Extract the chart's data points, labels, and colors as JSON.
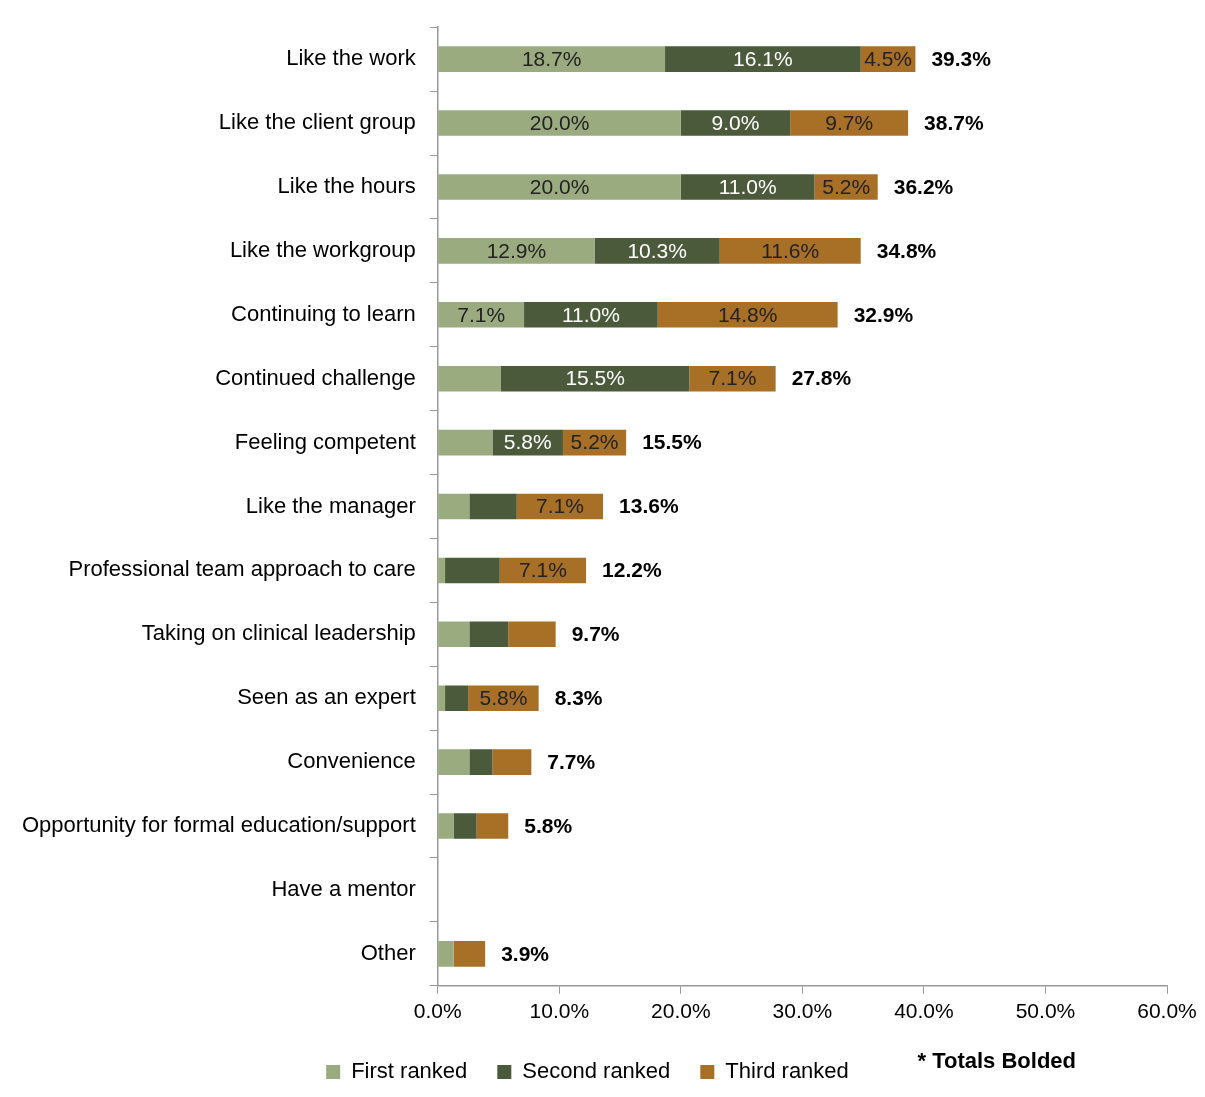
{
  "chart_data": {
    "type": "bar",
    "orientation": "horizontal",
    "stacked": true,
    "categories": [
      "Like the work",
      "Like the client group",
      "Like the hours",
      "Like the workgroup",
      "Continuing to learn",
      "Continued challenge",
      "Feeling competent",
      "Like the manager",
      "Professional team approach to care",
      "Taking on clinical leadership",
      "Seen as an expert",
      "Convenience",
      "Opportunity for formal education/support",
      "Have a mentor",
      "Other"
    ],
    "series": [
      {
        "name": "First ranked",
        "color": "#9aab7f",
        "values": [
          18.7,
          20.0,
          20.0,
          12.9,
          7.1,
          5.2,
          4.5,
          2.6,
          0.6,
          2.6,
          0.6,
          2.6,
          1.3,
          0,
          1.3
        ],
        "value_labels": [
          "18.7%",
          "20.0%",
          "20.0%",
          "12.9%",
          "7.1%",
          null,
          null,
          null,
          null,
          null,
          null,
          null,
          null,
          null,
          null
        ]
      },
      {
        "name": "Second ranked",
        "color": "#4b5a3a",
        "values": [
          16.1,
          9.0,
          11.0,
          10.3,
          11.0,
          15.5,
          5.8,
          3.9,
          4.5,
          3.2,
          1.9,
          1.9,
          1.9,
          0,
          0
        ],
        "value_labels": [
          "16.1%",
          "9.0%",
          "11.0%",
          "10.3%",
          "11.0%",
          "15.5%",
          "5.8%",
          null,
          null,
          null,
          null,
          null,
          null,
          null,
          null
        ]
      },
      {
        "name": "Third ranked",
        "color": "#a86f27",
        "values": [
          4.5,
          9.7,
          5.2,
          11.6,
          14.8,
          7.1,
          5.2,
          7.1,
          7.1,
          3.9,
          5.8,
          3.2,
          2.6,
          0,
          2.6
        ],
        "value_labels": [
          "4.5%",
          "9.7%",
          "5.2%",
          "11.6%",
          "14.8%",
          "7.1%",
          "5.2%",
          "7.1%",
          "7.1%",
          null,
          "5.8%",
          null,
          null,
          null,
          null
        ]
      }
    ],
    "totals": [
      "39.3%",
      "38.7%",
      "36.2%",
      "34.8%",
      "32.9%",
      "27.8%",
      "15.5%",
      "13.6%",
      "12.2%",
      "9.7%",
      "8.3%",
      "7.7%",
      "5.8%",
      null,
      "3.9%"
    ],
    "xlim": [
      0,
      60
    ],
    "xticks": [
      {
        "value": 0,
        "label": "0.0%"
      },
      {
        "value": 10,
        "label": "10.0%"
      },
      {
        "value": 20,
        "label": "20.0%"
      },
      {
        "value": 30,
        "label": "30.0%"
      },
      {
        "value": 40,
        "label": "40.0%"
      },
      {
        "value": 50,
        "label": "50.0%"
      },
      {
        "value": 60,
        "label": "60.0%"
      }
    ],
    "grid": false,
    "legend": "bottom",
    "annotations": [
      "* Totals Bolded"
    ]
  }
}
